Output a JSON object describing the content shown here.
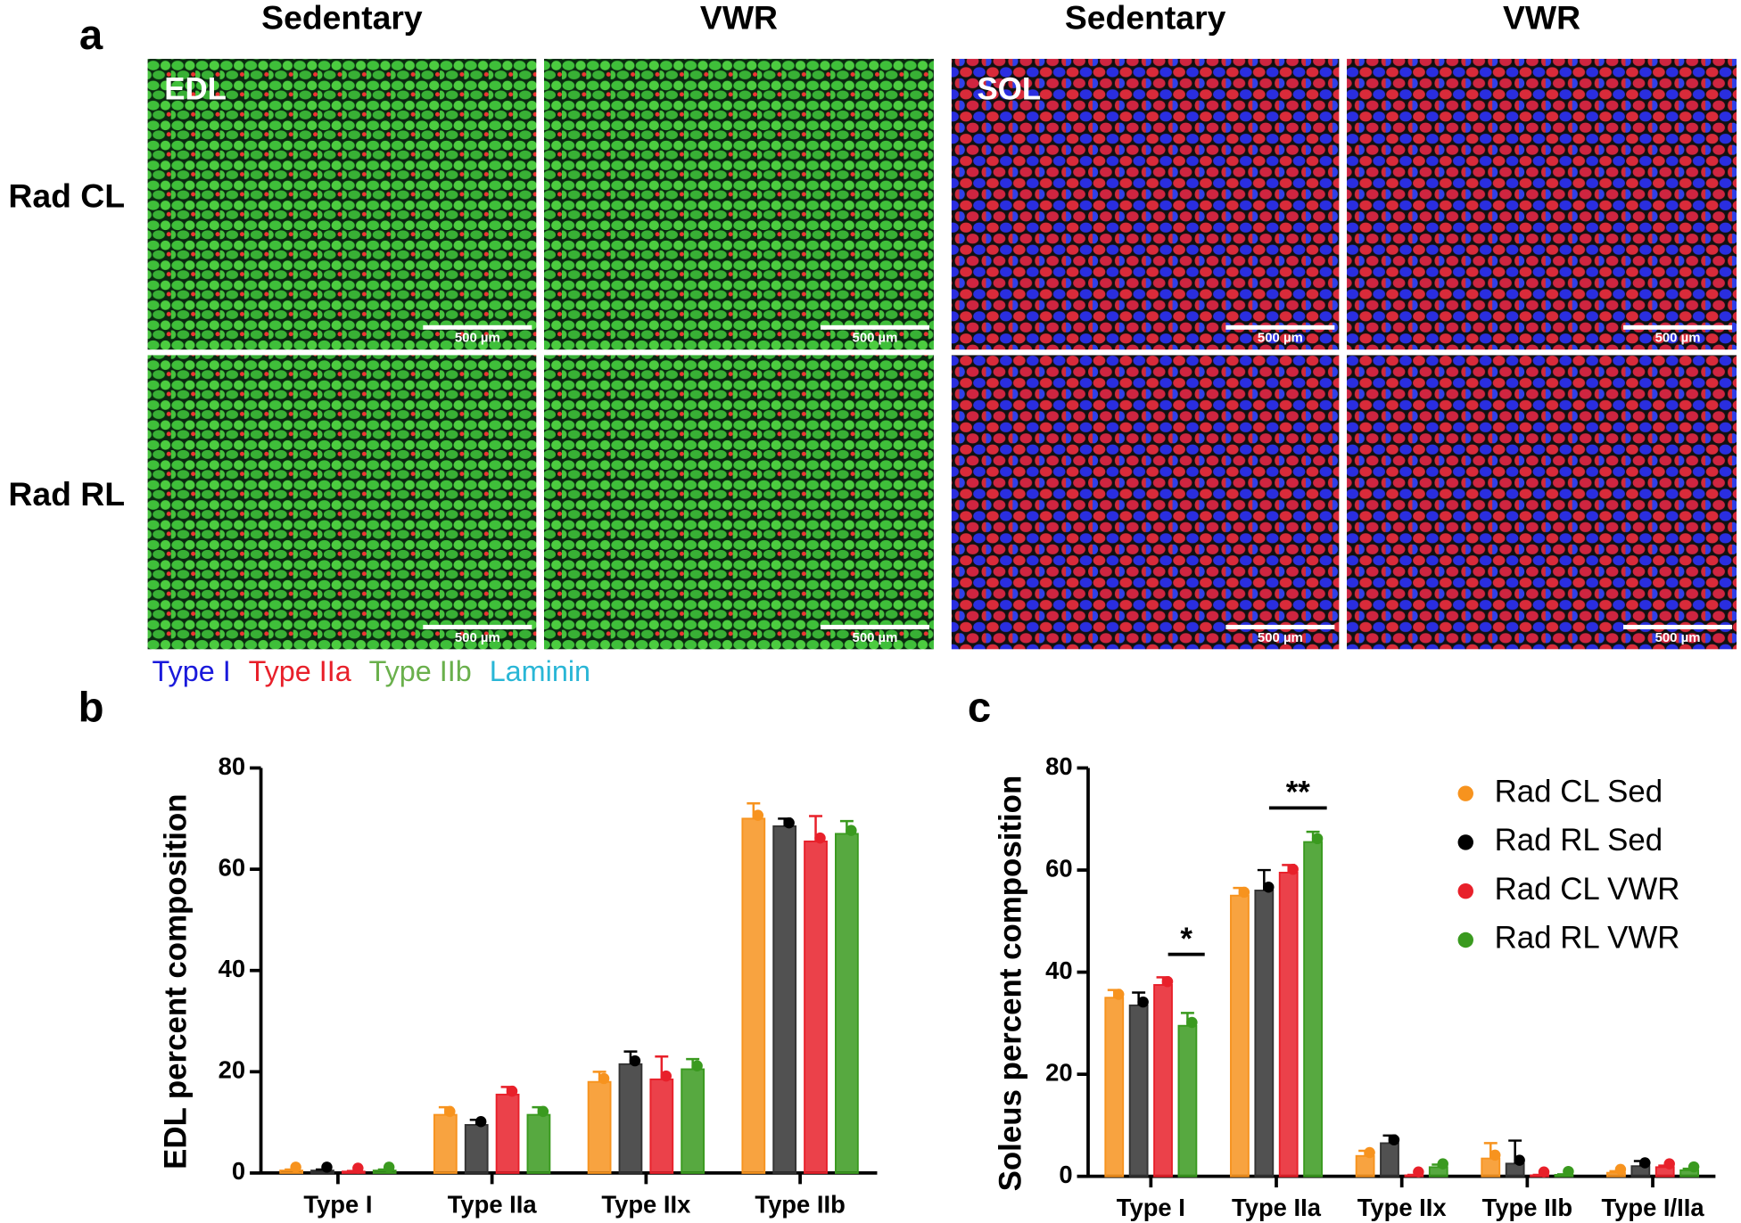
{
  "panel_labels": [
    "a",
    "b",
    "c"
  ],
  "column_headers": [
    "Sedentary",
    "VWR",
    "Sedentary",
    "VWR"
  ],
  "row_labels": [
    "Rad CL",
    "Rad RL"
  ],
  "image_labels": [
    "EDL",
    "SOL"
  ],
  "scale_bar": "500 µm",
  "stain_legend": [
    {
      "name": "Type I",
      "color": "#1a1adb"
    },
    {
      "name": "Type IIa",
      "color": "#e8202a"
    },
    {
      "name": "Type IIb",
      "color": "#6ab04c"
    },
    {
      "name": "Laminin",
      "color": "#29b6d6"
    }
  ],
  "chart_data": [
    {
      "type": "bar",
      "ylabel": "EDL percent composition",
      "categories": [
        "Type I",
        "Type IIa",
        "Type IIx",
        "Type IIb"
      ],
      "series": [
        {
          "name": "Rad CL Sed",
          "color": "#f7931e",
          "values": [
            0.5,
            11.5,
            18,
            70
          ],
          "errors": [
            0.2,
            1.5,
            2,
            3
          ]
        },
        {
          "name": "Rad RL Sed",
          "color": "#333333",
          "values": [
            0.5,
            9.5,
            21.5,
            68.5
          ],
          "errors": [
            0.2,
            1,
            2.5,
            1.5
          ]
        },
        {
          "name": "Rad CL VWR",
          "color": "#e8202a",
          "values": [
            0.3,
            15.5,
            18.5,
            65.5
          ],
          "errors": [
            0.1,
            1.5,
            4.5,
            5
          ]
        },
        {
          "name": "Rad RL VWR",
          "color": "#3a9a1f",
          "values": [
            0.5,
            11.5,
            20.5,
            67
          ],
          "errors": [
            0.2,
            1.5,
            2,
            2.5
          ]
        }
      ],
      "ylim": [
        0,
        80
      ],
      "yticks": [
        0,
        20,
        40,
        60,
        80
      ]
    },
    {
      "type": "bar",
      "ylabel": "Soleus percent composition",
      "categories": [
        "Type I",
        "Type IIa",
        "Type IIx",
        "Type IIb",
        "Type I/IIa"
      ],
      "series": [
        {
          "name": "Rad CL Sed",
          "color": "#f7931e",
          "values": [
            35,
            55,
            4,
            3.5,
            0.7
          ],
          "errors": [
            1.5,
            1.5,
            1,
            3,
            0.3
          ]
        },
        {
          "name": "Rad RL Sed",
          "color": "#333333",
          "values": [
            33.5,
            56,
            6.5,
            2.5,
            2
          ],
          "errors": [
            2.5,
            4,
            1.5,
            4.5,
            1
          ]
        },
        {
          "name": "Rad CL VWR",
          "color": "#e8202a",
          "values": [
            37.5,
            59.5,
            0.2,
            0.2,
            1.8
          ],
          "errors": [
            1.5,
            1.5,
            0.1,
            0.1,
            0.3
          ]
        },
        {
          "name": "Rad RL VWR",
          "color": "#3a9a1f",
          "values": [
            29.5,
            65.5,
            1.8,
            0.3,
            1.2
          ],
          "errors": [
            2.5,
            2,
            0.5,
            0.1,
            0.3
          ]
        }
      ],
      "ylim": [
        0,
        80
      ],
      "yticks": [
        0,
        20,
        40,
        60,
        80
      ],
      "annotations": [
        "*",
        "**"
      ],
      "legend": "upper right"
    }
  ]
}
